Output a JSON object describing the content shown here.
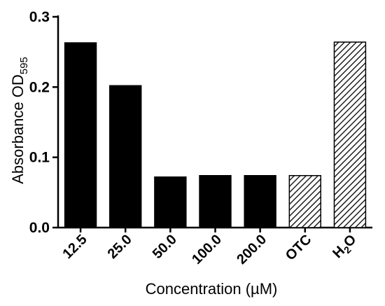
{
  "chart_data": {
    "type": "bar",
    "categories": [
      "12.5",
      "25.0",
      "50.0",
      "100.0",
      "200.0",
      "OTC",
      "H₂O"
    ],
    "category_labels": [
      {
        "main": "12.5",
        "sub": "",
        "tail": ""
      },
      {
        "main": "25.0",
        "sub": "",
        "tail": ""
      },
      {
        "main": "50.0",
        "sub": "",
        "tail": ""
      },
      {
        "main": "100.0",
        "sub": "",
        "tail": ""
      },
      {
        "main": "200.0",
        "sub": "",
        "tail": ""
      },
      {
        "main": "OTC",
        "sub": "",
        "tail": ""
      },
      {
        "main": "H",
        "sub": "2",
        "tail": "O"
      }
    ],
    "values": [
      0.263,
      0.202,
      0.072,
      0.074,
      0.074,
      0.074,
      0.264
    ],
    "fills": [
      "solid",
      "solid",
      "solid",
      "solid",
      "solid",
      "hatched",
      "hatched"
    ],
    "xlabel": "Concentration (µM)",
    "ylabel": {
      "main": "Absorbance OD",
      "sub": "595"
    },
    "ylim": [
      0,
      0.3
    ],
    "yticks": [
      0.0,
      0.1,
      0.2,
      0.3
    ],
    "ytick_labels": [
      "0.0",
      "0.1",
      "0.2",
      "0.3"
    ],
    "grid": false,
    "legend": "none",
    "colors": {
      "bar": "#000000",
      "hatch": "#000000",
      "hatch_bg": "#ffffff"
    }
  }
}
